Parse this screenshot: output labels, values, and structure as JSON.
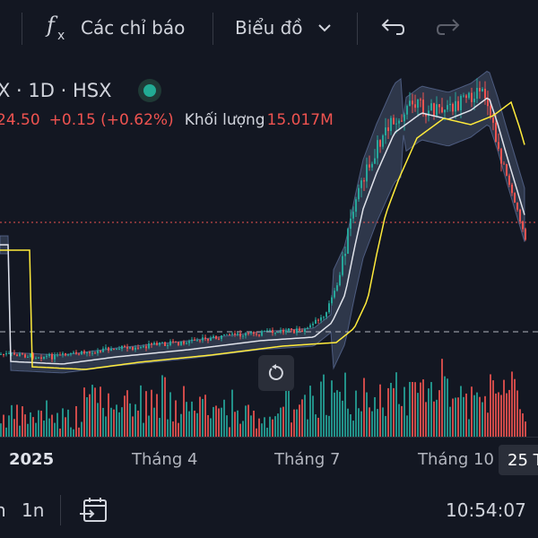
{
  "toolbar": {
    "indicators_label": "Các chỉ báo",
    "chart_type_label": "Biểu đồ"
  },
  "legend": {
    "symbol": "X · 1D · HSX",
    "price": "24.50",
    "change": "+0.15 (+0.62%)",
    "volume_label": "Khối lượng",
    "volume_value": "15.017M"
  },
  "time_axis": {
    "labels": [
      "2025",
      "Tháng 4",
      "Tháng 7",
      "Tháng 10"
    ],
    "current_badge": "25 T"
  },
  "bottom_bar": {
    "interval_a": "n",
    "interval_b": "1n",
    "time": "10:54:07"
  },
  "colors": {
    "background": "#131722",
    "up": "#26a69a",
    "down": "#ef5350",
    "sma_line": "#ffeb3b",
    "bb_line": "#e0e3eb",
    "bb_fill": "#5d6b8c",
    "status_dot": "#22ab94"
  },
  "icons": {
    "indicators": "function-fx-icon",
    "chart_type": "chevron-down-icon",
    "undo": "undo-icon",
    "redo": "redo-icon",
    "reset": "reset-rotate-icon",
    "date_range": "calendar-goto-icon"
  }
}
